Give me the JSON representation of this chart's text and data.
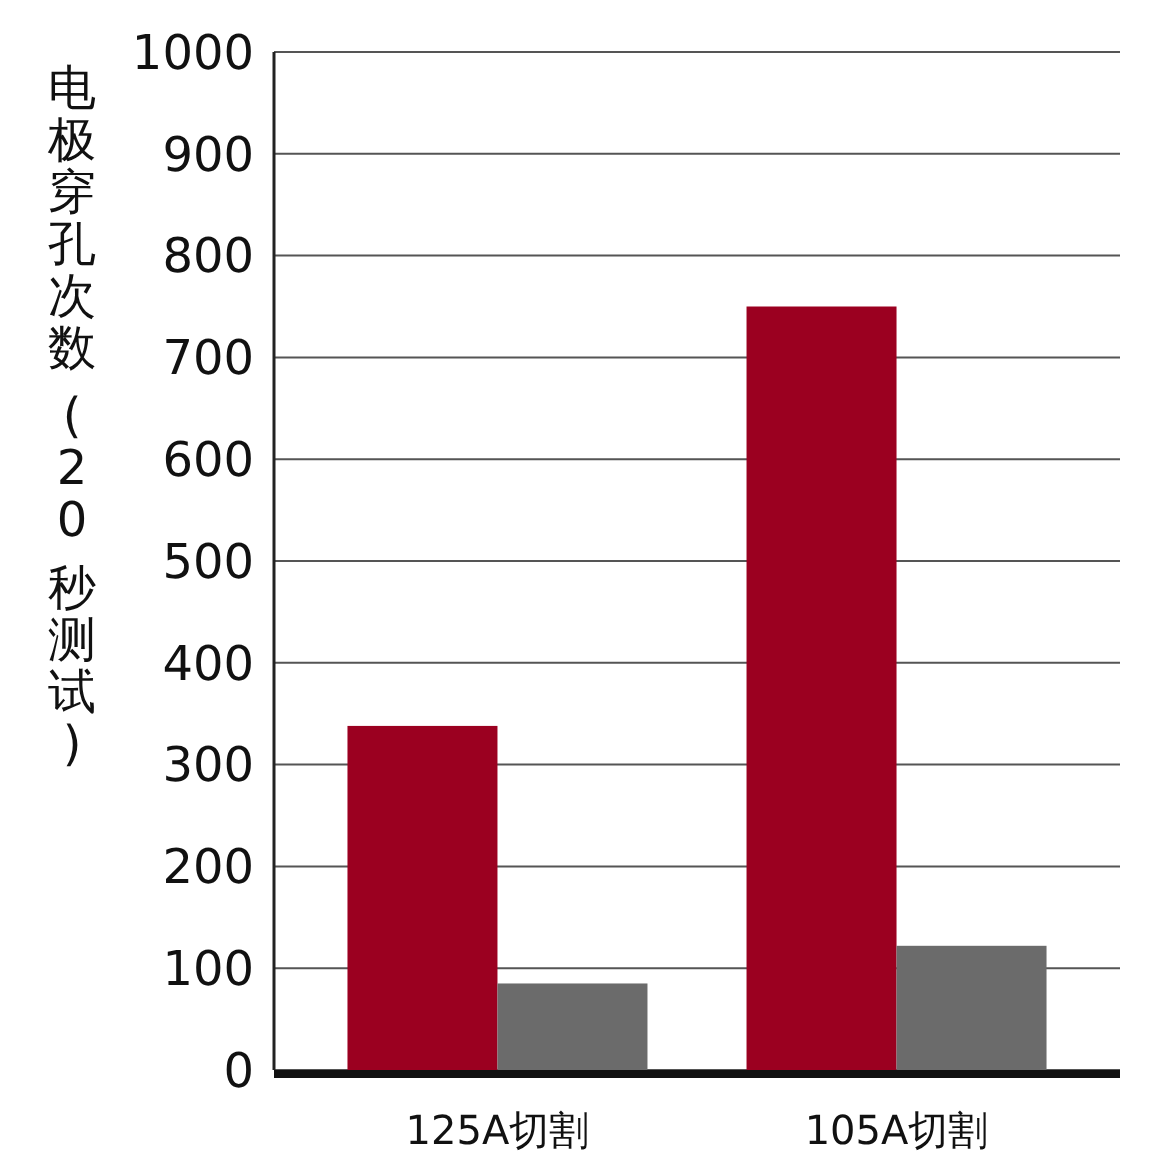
{
  "chart_data": {
    "type": "bar",
    "ylabel": "电极穿孔次数 (20 秒测试)",
    "categories": [
      "125A切割",
      "105A切割"
    ],
    "series": [
      {
        "color": "#9b0020",
        "values": [
          338,
          750
        ]
      },
      {
        "color": "#6b6b6b",
        "values": [
          85,
          122
        ]
      }
    ],
    "ylim": [
      0,
      1000
    ],
    "yticks": [
      0,
      100,
      200,
      300,
      400,
      500,
      600,
      700,
      800,
      900,
      1000
    ],
    "grid": "y"
  }
}
